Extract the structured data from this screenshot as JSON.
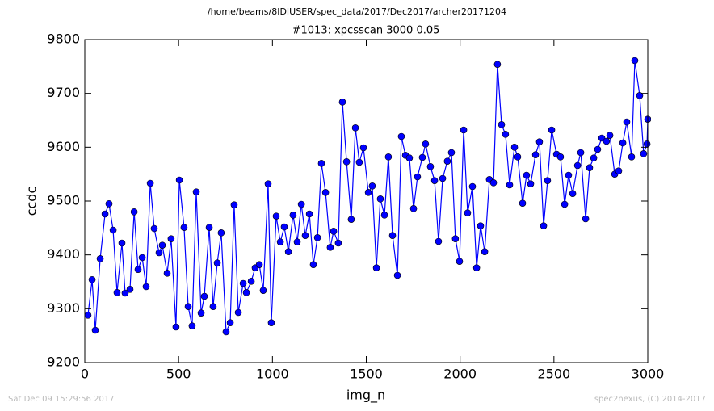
{
  "chart_data": {
    "type": "line",
    "title": "/home/beams/8IDIUSER/spec_data/2017/Dec2017/archer20171204",
    "subtitle": "#1013: xpcsscan 3000 0.05",
    "xlabel": "img_n",
    "ylabel": "ccdc",
    "footer_left": "Sat Dec 09 15:29:56 2017",
    "footer_right": "spec2nexus, (C) 2014-2017",
    "xlim": [
      0,
      3000
    ],
    "ylim": [
      9200,
      9800
    ],
    "xticks": [
      0,
      500,
      1000,
      1500,
      2000,
      2500,
      3000
    ],
    "yticks": [
      9200,
      9300,
      9400,
      9500,
      9600,
      9700,
      9800
    ],
    "grid": false,
    "series": [
      {
        "name": "ccdc",
        "color": "#0000ff",
        "x": [
          17,
          39,
          56,
          82,
          108,
          129,
          151,
          172,
          198,
          215,
          241,
          263,
          284,
          306,
          327,
          349,
          370,
          396,
          413,
          439,
          460,
          486,
          504,
          529,
          551,
          572,
          594,
          620,
          637,
          663,
          684,
          706,
          727,
          753,
          775,
          796,
          818,
          844,
          861,
          887,
          908,
          930,
          951,
          977,
          994,
          1020,
          1042,
          1063,
          1085,
          1110,
          1132,
          1154,
          1175,
          1197,
          1218,
          1240,
          1261,
          1283,
          1308,
          1326,
          1351,
          1373,
          1395,
          1420,
          1442,
          1463,
          1485,
          1511,
          1532,
          1554,
          1575,
          1597,
          1618,
          1640,
          1666,
          1687,
          1709,
          1730,
          1752,
          1773,
          1799,
          1816,
          1842,
          1864,
          1885,
          1907,
          1932,
          1954,
          1975,
          1997,
          2019,
          2040,
          2066,
          2088,
          2109,
          2131,
          2156,
          2178,
          2199,
          2221,
          2242,
          2264,
          2290,
          2307,
          2333,
          2354,
          2376,
          2402,
          2423,
          2445,
          2466,
          2488,
          2514,
          2535,
          2557,
          2578,
          2600,
          2626,
          2643,
          2669,
          2690,
          2712,
          2733,
          2755,
          2780,
          2798,
          2824,
          2845,
          2867,
          2888,
          2914,
          2931,
          2957,
          2978,
          2996,
          3000
        ],
        "values": [
          9288,
          9354,
          9260,
          9393,
          9476,
          9495,
          9446,
          9330,
          9422,
          9329,
          9336,
          9480,
          9373,
          9395,
          9341,
          9533,
          9449,
          9404,
          9418,
          9366,
          9430,
          9266,
          9539,
          9451,
          9304,
          9268,
          9517,
          9292,
          9323,
          9451,
          9304,
          9385,
          9441,
          9257,
          9274,
          9493,
          9293,
          9347,
          9330,
          9351,
          9376,
          9382,
          9334,
          9532,
          9274,
          9472,
          9424,
          9452,
          9406,
          9474,
          9424,
          9494,
          9436,
          9476,
          9382,
          9432,
          9570,
          9516,
          9414,
          9444,
          9422,
          9684,
          9573,
          9466,
          9636,
          9572,
          9599,
          9516,
          9528,
          9376,
          9504,
          9474,
          9582,
          9436,
          9362,
          9620,
          9585,
          9580,
          9486,
          9545,
          9581,
          9606,
          9564,
          9538,
          9425,
          9542,
          9574,
          9590,
          9430,
          9388,
          9632,
          9478,
          9527,
          9376,
          9454,
          9406,
          9540,
          9534,
          9754,
          9642,
          9624,
          9530,
          9600,
          9582,
          9496,
          9548,
          9532,
          9586,
          9610,
          9454,
          9538,
          9632,
          9587,
          9582,
          9494,
          9548,
          9514,
          9566,
          9590,
          9467,
          9562,
          9580,
          9596,
          9617,
          9611,
          9622,
          9550,
          9556,
          9608,
          9647,
          9582,
          9761,
          9696,
          9588,
          9606,
          9652
        ]
      }
    ]
  }
}
